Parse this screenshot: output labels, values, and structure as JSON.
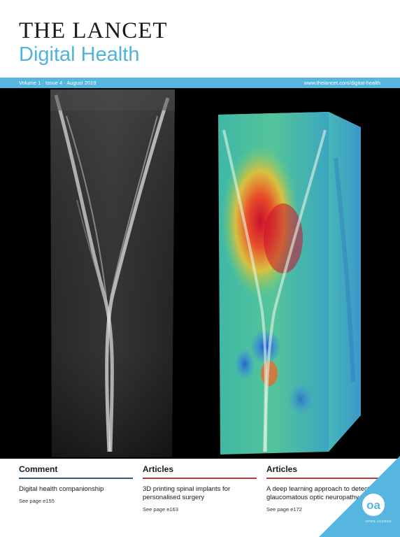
{
  "masthead": {
    "journal_name": "THE LANCET",
    "journal_subtitle": "Digital Health"
  },
  "infobar": {
    "issue": "Volume 1 · Issue 4 · August 2019",
    "url": "www.thelancet.com/digital-health"
  },
  "cover_image": {
    "left_panel": "greyscale-oct-scan",
    "right_panel": "3d-heatmap-scan"
  },
  "footer": {
    "columns": [
      {
        "section": "Comment",
        "title": "Digital health companionship",
        "page": "See page e155",
        "rule_color": "#2a5c8c"
      },
      {
        "section": "Articles",
        "title": "3D printing spinal implants for personalised surgery",
        "page": "See page e163",
        "rule_color": "#c0392b"
      },
      {
        "section": "Articles",
        "title": "A deep learning approach to detect glaucomatous optic neuropathy",
        "page": "See page e172",
        "rule_color": "#c0392b"
      }
    ],
    "oa": {
      "badge": "oa",
      "label": "OPEN ACCESS"
    }
  },
  "colors": {
    "brand_blue": "#56b6df",
    "text_dark": "#1a1a1a",
    "comment_rule": "#2a5c8c",
    "articles_rule": "#c0392b"
  }
}
